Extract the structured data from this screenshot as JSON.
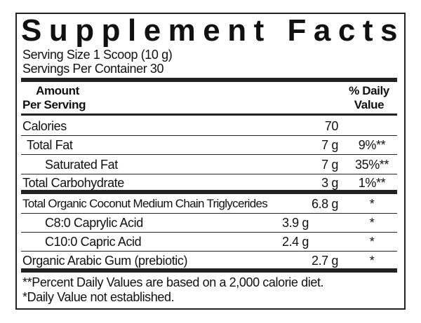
{
  "title": "Supplement Facts",
  "serving_size": "Serving Size 1 Scoop (10 g)",
  "servings_per_container": "Servings Per Container 30",
  "header": {
    "amount": [
      "Amount",
      "Per Serving"
    ],
    "daily_value": [
      "% Daily",
      "Value"
    ]
  },
  "rows": [
    {
      "name": "Calories",
      "amount": "70"
    },
    {
      "name": "Total Fat",
      "amount": "7 g",
      "daily_value": "9%**"
    },
    {
      "name": "Saturated Fat",
      "amount": "7 g",
      "daily_value": "35%**"
    },
    {
      "name": "Total Carbohydrate",
      "amount": "3 g",
      "daily_value": "1%**"
    },
    {
      "name": "Total Organic Coconut Medium Chain Triglycerides",
      "amount": "6.8 g",
      "daily_value": "*"
    },
    {
      "name": "C8:0 Caprylic Acid",
      "amount": "3.9 g",
      "daily_value": "*"
    },
    {
      "name": "C10:0 Capric Acid",
      "amount": "2.4 g",
      "daily_value": "*"
    },
    {
      "name": "Organic Arabic Gum (prebiotic)",
      "amount": "2.7 g",
      "daily_value": "*"
    }
  ],
  "footnotes": [
    "**Percent Daily Values are based on a 2,000 calorie diet.",
    "*Daily Value not established."
  ]
}
